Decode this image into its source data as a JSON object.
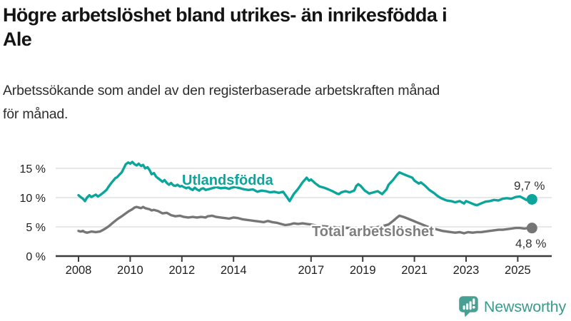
{
  "header": {
    "title": "Högre arbetslöshet bland utrikes- än inrikesfödda i Ale",
    "title_lines": [
      "Högre arbetslöshet bland utrikes- än inrikesfödda i",
      "Ale"
    ],
    "subtitle": "Arbetssökande som andel av den registerbaserade arbetskraften månad för månad.",
    "subtitle_lines": [
      "Arbetssökande som andel av den registerbaserade arbetskraften månad",
      "för månad."
    ]
  },
  "chart_data": {
    "type": "line",
    "unit": "%",
    "x_ticks": [
      2008,
      2010,
      2012,
      2014,
      2017,
      2019,
      2021,
      2023,
      2025
    ],
    "x_tick_labels": [
      "2008",
      "2010",
      "2012",
      "2014",
      "2017",
      "2019",
      "2021",
      "2023",
      "2025"
    ],
    "y_ticks": [
      0,
      5,
      10,
      15
    ],
    "y_tick_labels": [
      "0 %",
      "5 %",
      "10 %",
      "15 %"
    ],
    "xlim": [
      2007.8,
      2026.3
    ],
    "ylim": [
      0,
      18
    ],
    "grid": "horizontal",
    "colors": {
      "utlandsfodda": "#0CA59B",
      "total": "#767676",
      "axis": "#3C3C3C",
      "gridline": "#DBDBDB",
      "value_label": "#333333",
      "total_label": "#7E7E7E"
    },
    "series": [
      {
        "name": "Utlandsfödda",
        "color": "#0CA59B",
        "end_label": "9,7 %",
        "end_value": 9.7,
        "points": [
          [
            2008.0,
            10.4
          ],
          [
            2008.08,
            10.1
          ],
          [
            2008.17,
            9.8
          ],
          [
            2008.25,
            9.4
          ],
          [
            2008.33,
            10.0
          ],
          [
            2008.42,
            10.4
          ],
          [
            2008.5,
            10.1
          ],
          [
            2008.58,
            10.3
          ],
          [
            2008.67,
            10.5
          ],
          [
            2008.75,
            10.2
          ],
          [
            2008.83,
            10.4
          ],
          [
            2008.92,
            10.7
          ],
          [
            2009.0,
            11.0
          ],
          [
            2009.08,
            11.3
          ],
          [
            2009.17,
            11.9
          ],
          [
            2009.25,
            12.4
          ],
          [
            2009.33,
            12.8
          ],
          [
            2009.42,
            13.3
          ],
          [
            2009.5,
            13.5
          ],
          [
            2009.58,
            13.9
          ],
          [
            2009.67,
            14.3
          ],
          [
            2009.75,
            15.0
          ],
          [
            2009.83,
            15.7
          ],
          [
            2009.92,
            16.0
          ],
          [
            2010.0,
            15.8
          ],
          [
            2010.08,
            16.1
          ],
          [
            2010.17,
            15.7
          ],
          [
            2010.25,
            15.5
          ],
          [
            2010.33,
            15.8
          ],
          [
            2010.42,
            15.4
          ],
          [
            2010.5,
            15.6
          ],
          [
            2010.58,
            15.0
          ],
          [
            2010.67,
            15.2
          ],
          [
            2010.75,
            14.7
          ],
          [
            2010.83,
            14.0
          ],
          [
            2010.92,
            14.2
          ],
          [
            2011.0,
            13.6
          ],
          [
            2011.08,
            13.3
          ],
          [
            2011.17,
            13.0
          ],
          [
            2011.25,
            12.7
          ],
          [
            2011.33,
            13.0
          ],
          [
            2011.42,
            12.5
          ],
          [
            2011.5,
            12.2
          ],
          [
            2011.58,
            12.5
          ],
          [
            2011.67,
            12.1
          ],
          [
            2011.75,
            12.0
          ],
          [
            2011.83,
            12.2
          ],
          [
            2011.92,
            11.9
          ],
          [
            2012.0,
            12.0
          ],
          [
            2012.08,
            11.8
          ],
          [
            2012.17,
            11.6
          ],
          [
            2012.25,
            11.8
          ],
          [
            2012.33,
            11.5
          ],
          [
            2012.42,
            11.3
          ],
          [
            2012.5,
            11.7
          ],
          [
            2012.58,
            11.4
          ],
          [
            2012.67,
            11.2
          ],
          [
            2012.75,
            11.5
          ],
          [
            2012.83,
            11.6
          ],
          [
            2012.92,
            11.3
          ],
          [
            2013.0,
            11.4
          ],
          [
            2013.17,
            11.6
          ],
          [
            2013.33,
            11.8
          ],
          [
            2013.5,
            11.6
          ],
          [
            2013.67,
            11.7
          ],
          [
            2013.83,
            11.5
          ],
          [
            2013.92,
            11.7
          ],
          [
            2014.08,
            11.8
          ],
          [
            2014.25,
            11.6
          ],
          [
            2014.42,
            11.4
          ],
          [
            2014.58,
            11.3
          ],
          [
            2014.75,
            11.4
          ],
          [
            2014.92,
            11.0
          ],
          [
            2015.08,
            11.2
          ],
          [
            2015.25,
            11.1
          ],
          [
            2015.42,
            10.9
          ],
          [
            2015.58,
            11.0
          ],
          [
            2015.75,
            10.8
          ],
          [
            2015.92,
            11.0
          ],
          [
            2016.08,
            10.0
          ],
          [
            2016.17,
            9.4
          ],
          [
            2016.33,
            10.6
          ],
          [
            2016.5,
            11.5
          ],
          [
            2016.67,
            12.6
          ],
          [
            2016.83,
            13.4
          ],
          [
            2016.92,
            12.9
          ],
          [
            2017.0,
            13.1
          ],
          [
            2017.17,
            12.4
          ],
          [
            2017.33,
            11.9
          ],
          [
            2017.5,
            11.7
          ],
          [
            2017.67,
            11.4
          ],
          [
            2017.83,
            11.1
          ],
          [
            2018.0,
            10.7
          ],
          [
            2018.08,
            10.6
          ],
          [
            2018.17,
            10.9
          ],
          [
            2018.33,
            11.1
          ],
          [
            2018.5,
            10.9
          ],
          [
            2018.67,
            11.2
          ],
          [
            2018.75,
            12.0
          ],
          [
            2018.83,
            12.3
          ],
          [
            2018.92,
            12.0
          ],
          [
            2019.08,
            11.2
          ],
          [
            2019.25,
            10.7
          ],
          [
            2019.42,
            10.9
          ],
          [
            2019.58,
            11.1
          ],
          [
            2019.75,
            10.6
          ],
          [
            2019.92,
            11.4
          ],
          [
            2020.0,
            12.2
          ],
          [
            2020.17,
            13.0
          ],
          [
            2020.33,
            13.9
          ],
          [
            2020.42,
            14.3
          ],
          [
            2020.58,
            14.0
          ],
          [
            2020.75,
            13.7
          ],
          [
            2020.92,
            13.4
          ],
          [
            2021.0,
            12.9
          ],
          [
            2021.17,
            12.4
          ],
          [
            2021.25,
            12.6
          ],
          [
            2021.42,
            12.0
          ],
          [
            2021.58,
            11.3
          ],
          [
            2021.75,
            10.8
          ],
          [
            2021.92,
            10.2
          ],
          [
            2022.08,
            9.8
          ],
          [
            2022.25,
            9.5
          ],
          [
            2022.42,
            9.4
          ],
          [
            2022.58,
            9.2
          ],
          [
            2022.75,
            9.4
          ],
          [
            2022.92,
            9.0
          ],
          [
            2023.0,
            9.4
          ],
          [
            2023.17,
            9.1
          ],
          [
            2023.33,
            8.8
          ],
          [
            2023.42,
            8.7
          ],
          [
            2023.58,
            9.0
          ],
          [
            2023.75,
            9.3
          ],
          [
            2023.92,
            9.4
          ],
          [
            2024.08,
            9.6
          ],
          [
            2024.25,
            9.5
          ],
          [
            2024.42,
            9.8
          ],
          [
            2024.58,
            9.9
          ],
          [
            2024.75,
            9.8
          ],
          [
            2024.92,
            10.1
          ],
          [
            2025.08,
            10.2
          ],
          [
            2025.17,
            10.0
          ],
          [
            2025.33,
            9.6
          ],
          [
            2025.42,
            9.8
          ],
          [
            2025.55,
            9.7
          ]
        ]
      },
      {
        "name": "Total arbetslöshet",
        "color": "#767676",
        "end_label": "4,8 %",
        "end_value": 4.8,
        "points": [
          [
            2008.0,
            4.3
          ],
          [
            2008.08,
            4.2
          ],
          [
            2008.17,
            4.3
          ],
          [
            2008.25,
            4.1
          ],
          [
            2008.33,
            4.0
          ],
          [
            2008.42,
            4.1
          ],
          [
            2008.5,
            4.2
          ],
          [
            2008.67,
            4.1
          ],
          [
            2008.83,
            4.2
          ],
          [
            2008.92,
            4.4
          ],
          [
            2009.0,
            4.6
          ],
          [
            2009.17,
            5.1
          ],
          [
            2009.33,
            5.7
          ],
          [
            2009.5,
            6.3
          ],
          [
            2009.67,
            6.8
          ],
          [
            2009.83,
            7.3
          ],
          [
            2009.92,
            7.6
          ],
          [
            2010.0,
            7.8
          ],
          [
            2010.08,
            8.0
          ],
          [
            2010.17,
            8.3
          ],
          [
            2010.25,
            8.4
          ],
          [
            2010.42,
            8.2
          ],
          [
            2010.5,
            8.4
          ],
          [
            2010.58,
            8.2
          ],
          [
            2010.75,
            8.0
          ],
          [
            2010.83,
            7.8
          ],
          [
            2010.92,
            7.9
          ],
          [
            2011.08,
            7.7
          ],
          [
            2011.25,
            7.3
          ],
          [
            2011.42,
            7.4
          ],
          [
            2011.58,
            7.0
          ],
          [
            2011.75,
            6.8
          ],
          [
            2011.92,
            6.9
          ],
          [
            2012.08,
            6.7
          ],
          [
            2012.25,
            6.6
          ],
          [
            2012.42,
            6.7
          ],
          [
            2012.58,
            6.6
          ],
          [
            2012.75,
            6.7
          ],
          [
            2012.92,
            6.6
          ],
          [
            2013.0,
            6.8
          ],
          [
            2013.17,
            6.9
          ],
          [
            2013.33,
            6.7
          ],
          [
            2013.5,
            6.6
          ],
          [
            2013.67,
            6.5
          ],
          [
            2013.83,
            6.4
          ],
          [
            2014.0,
            6.6
          ],
          [
            2014.17,
            6.5
          ],
          [
            2014.33,
            6.3
          ],
          [
            2014.5,
            6.2
          ],
          [
            2014.67,
            6.1
          ],
          [
            2014.83,
            6.0
          ],
          [
            2015.0,
            5.9
          ],
          [
            2015.17,
            5.8
          ],
          [
            2015.33,
            6.0
          ],
          [
            2015.5,
            5.8
          ],
          [
            2015.67,
            5.7
          ],
          [
            2015.83,
            5.5
          ],
          [
            2016.0,
            5.3
          ],
          [
            2016.17,
            5.4
          ],
          [
            2016.33,
            5.6
          ],
          [
            2016.5,
            5.5
          ],
          [
            2016.67,
            5.6
          ],
          [
            2016.83,
            5.5
          ],
          [
            2017.0,
            5.4
          ],
          [
            2017.25,
            5.2
          ],
          [
            2017.5,
            5.1
          ],
          [
            2017.75,
            5.0
          ],
          [
            2018.0,
            4.9
          ],
          [
            2018.25,
            4.8
          ],
          [
            2018.5,
            4.8
          ],
          [
            2018.75,
            4.7
          ],
          [
            2019.0,
            4.7
          ],
          [
            2019.25,
            4.8
          ],
          [
            2019.5,
            4.9
          ],
          [
            2019.75,
            5.1
          ],
          [
            2020.0,
            5.4
          ],
          [
            2020.17,
            6.0
          ],
          [
            2020.33,
            6.6
          ],
          [
            2020.42,
            6.9
          ],
          [
            2020.58,
            6.7
          ],
          [
            2020.75,
            6.4
          ],
          [
            2020.92,
            6.1
          ],
          [
            2021.08,
            5.8
          ],
          [
            2021.25,
            5.5
          ],
          [
            2021.42,
            5.2
          ],
          [
            2021.58,
            4.9
          ],
          [
            2021.75,
            4.7
          ],
          [
            2021.92,
            4.5
          ],
          [
            2022.08,
            4.3
          ],
          [
            2022.25,
            4.2
          ],
          [
            2022.42,
            4.1
          ],
          [
            2022.58,
            4.0
          ],
          [
            2022.75,
            4.1
          ],
          [
            2022.92,
            3.9
          ],
          [
            2023.08,
            4.1
          ],
          [
            2023.25,
            4.0
          ],
          [
            2023.42,
            4.1
          ],
          [
            2023.58,
            4.1
          ],
          [
            2023.75,
            4.2
          ],
          [
            2023.92,
            4.3
          ],
          [
            2024.08,
            4.4
          ],
          [
            2024.25,
            4.5
          ],
          [
            2024.42,
            4.5
          ],
          [
            2024.58,
            4.6
          ],
          [
            2024.75,
            4.7
          ],
          [
            2024.92,
            4.8
          ],
          [
            2025.08,
            4.8
          ],
          [
            2025.25,
            4.7
          ],
          [
            2025.42,
            4.8
          ],
          [
            2025.55,
            4.8
          ]
        ]
      }
    ]
  },
  "footer": {
    "brand": "Newsworthy",
    "logo_icon": "bar-chart-speech-bubble"
  }
}
